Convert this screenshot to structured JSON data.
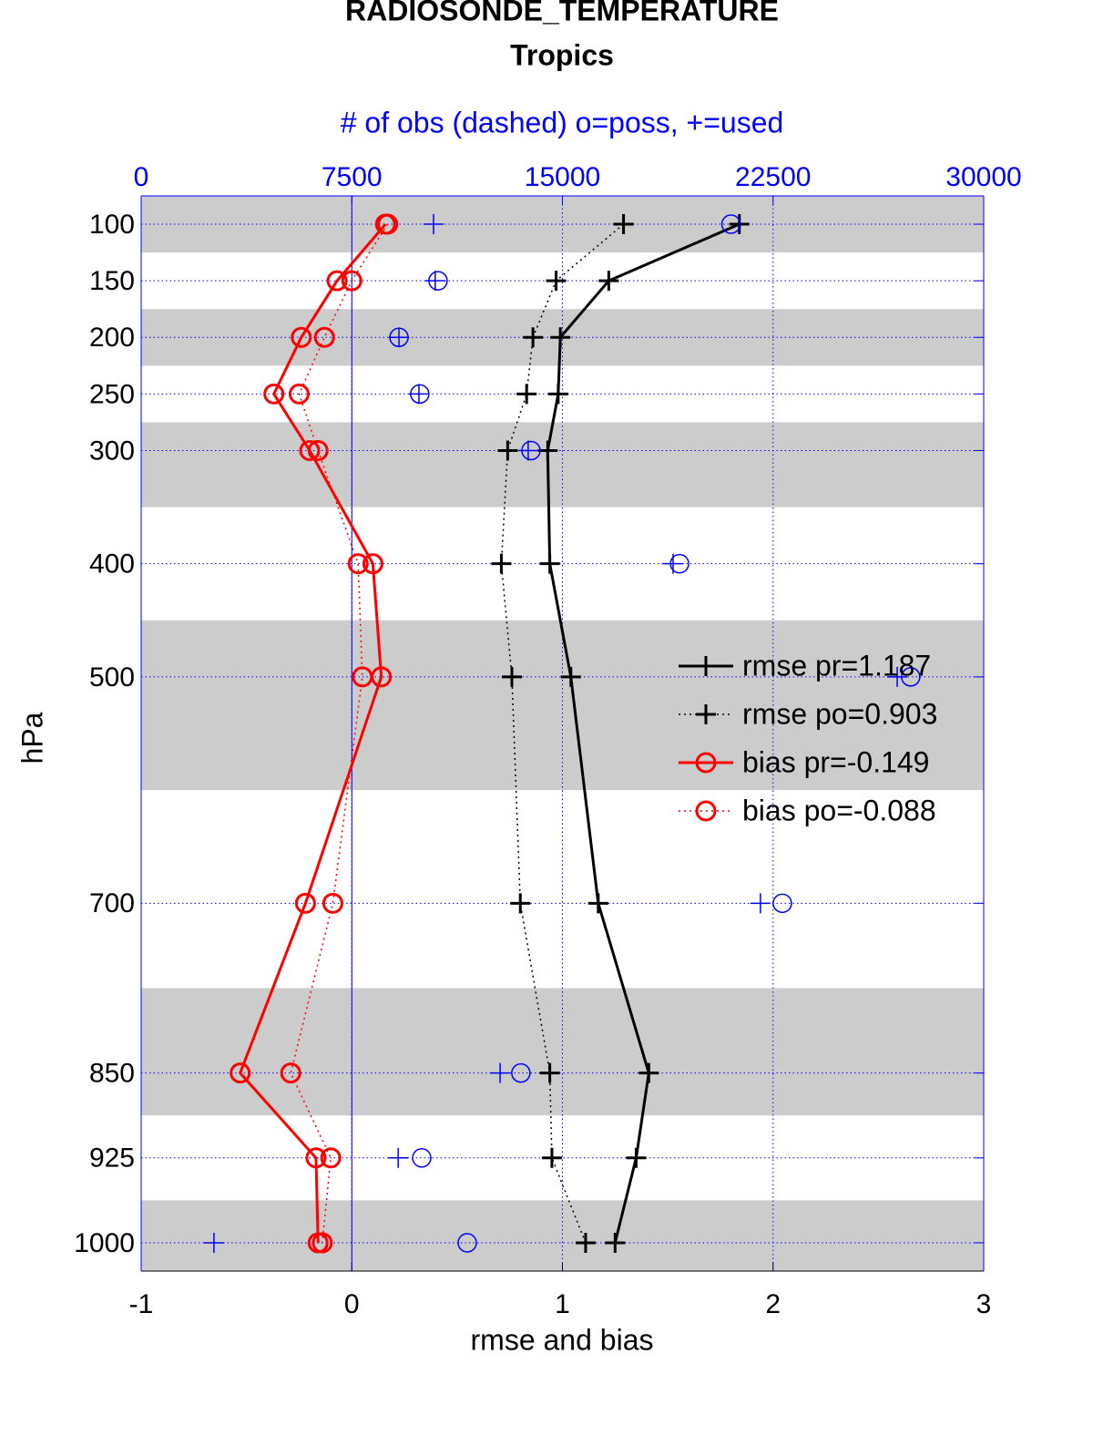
{
  "chart_data": {
    "type": "line",
    "title": "RADIOSONDE_TEMPERATURE",
    "subtitle": "Tropics",
    "x2label": "# of obs (dashed) o=poss, +=used",
    "xlabel": "rmse and bias",
    "ylabel": "hPa",
    "y": [
      100,
      150,
      200,
      250,
      300,
      400,
      500,
      700,
      850,
      925,
      1000
    ],
    "ylim": [
      1025,
      75
    ],
    "yticks": [
      100,
      150,
      200,
      250,
      300,
      400,
      500,
      700,
      850,
      925,
      1000
    ],
    "xlim": [
      -1,
      3
    ],
    "xticks": [
      -1,
      0,
      1,
      2,
      3
    ],
    "x2lim": [
      0,
      30000
    ],
    "x2ticks": [
      0,
      7500,
      15000,
      22500,
      30000
    ],
    "grid": true,
    "series": [
      {
        "name": "rmse pr=1.187",
        "color": "#000000",
        "style": "solid",
        "marker": "plus",
        "values": [
          1.84,
          1.22,
          0.99,
          0.98,
          0.93,
          0.94,
          1.04,
          1.17,
          1.41,
          1.35,
          1.25
        ]
      },
      {
        "name": "rmse po=0.903",
        "color": "#000000",
        "style": "dotted",
        "marker": "plus",
        "values": [
          1.29,
          0.97,
          0.86,
          0.83,
          0.74,
          0.71,
          0.76,
          0.8,
          0.94,
          0.95,
          1.11
        ]
      },
      {
        "name": "bias pr=-0.149",
        "color": "#ff0000",
        "style": "solid",
        "marker": "circle",
        "values": [
          0.16,
          -0.07,
          -0.24,
          -0.37,
          -0.2,
          0.1,
          0.14,
          -0.22,
          -0.53,
          -0.17,
          -0.16
        ]
      },
      {
        "name": "bias po=-0.088",
        "color": "#ff0000",
        "style": "dotted",
        "marker": "circle",
        "values": [
          0.17,
          0.0,
          -0.13,
          -0.25,
          -0.16,
          0.03,
          0.05,
          -0.09,
          -0.29,
          -0.1,
          -0.14
        ]
      },
      {
        "color": "#0000ff",
        "style": "none",
        "marker": "circle",
        "axis": "x2",
        "values": [
          21000,
          10570,
          9180,
          9920,
          13880,
          19170,
          27400,
          22830,
          13520,
          9990,
          11610
        ]
      },
      {
        "color": "#0000ff",
        "style": "none",
        "marker": "plus",
        "axis": "x2",
        "values": [
          10410,
          10470,
          9180,
          9890,
          13780,
          18940,
          26920,
          22050,
          12780,
          9150,
          2590
        ]
      }
    ]
  }
}
